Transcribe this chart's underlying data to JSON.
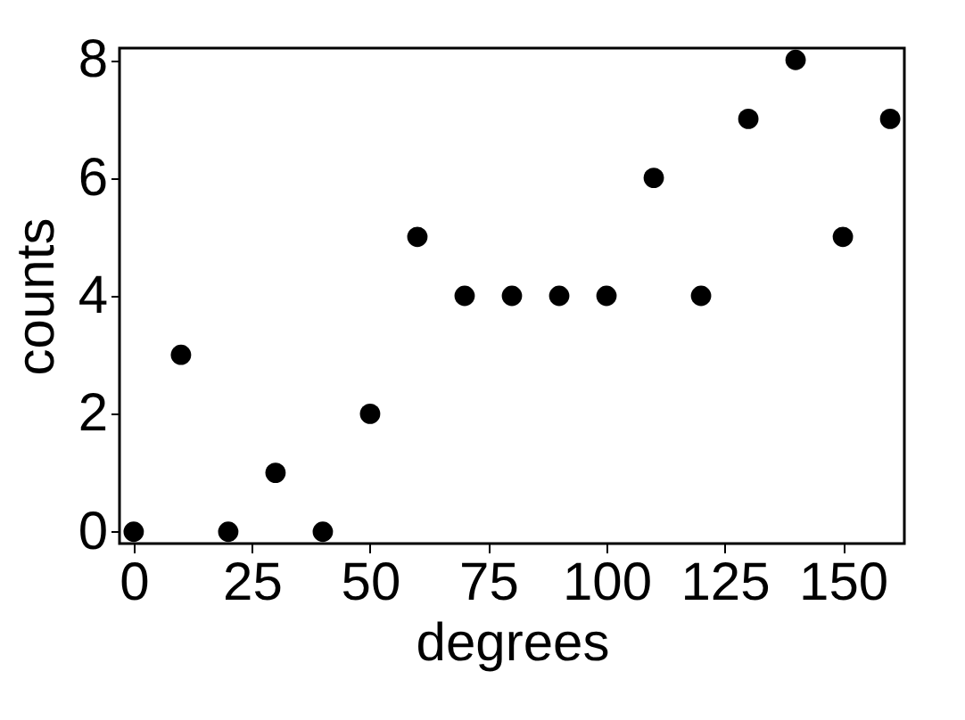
{
  "chart_data": {
    "type": "scatter",
    "xlabel": "degrees",
    "ylabel": "counts",
    "x": [
      0,
      10,
      20,
      30,
      40,
      50,
      60,
      70,
      80,
      90,
      100,
      110,
      120,
      130,
      140,
      150,
      160
    ],
    "values": [
      0,
      3,
      0,
      1,
      0,
      2,
      5,
      4,
      4,
      4,
      4,
      6,
      4,
      7,
      8,
      5,
      7
    ],
    "color": "#000000",
    "marker": "circle",
    "xlim": [
      -3,
      163
    ],
    "xticks": [
      0,
      25,
      50,
      75,
      100,
      125,
      150
    ],
    "ylim": [
      -0.2,
      8.2
    ],
    "yticks": [
      0,
      2,
      4,
      6,
      8
    ],
    "grid": false
  }
}
